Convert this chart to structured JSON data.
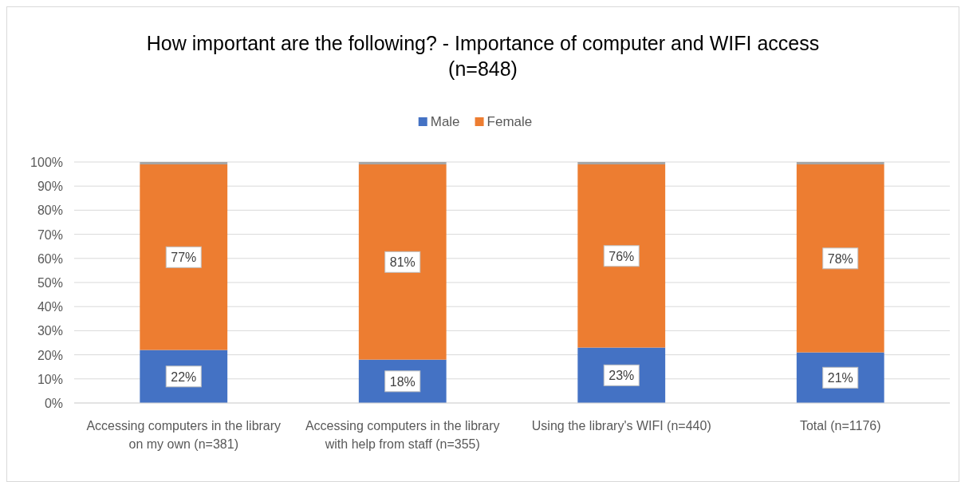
{
  "chart_data": {
    "type": "bar",
    "stacked": true,
    "title": "How important are the following? - Importance of computer and WIFI access (n=848)",
    "categories": [
      "Accessing computers in the library on my own (n=381)",
      "Accessing computers in the library with help from staff (n=355)",
      "Using the library's WIFI (n=440)",
      "Total (n=1176)"
    ],
    "series": [
      {
        "name": "Male",
        "color": "#4472c4",
        "values": [
          22,
          18,
          23,
          21
        ],
        "value_labels": [
          "22%",
          "18%",
          "23%",
          "21%"
        ]
      },
      {
        "name": "Female",
        "color": "#ed7d31",
        "values": [
          77,
          81,
          76,
          78
        ],
        "value_labels": [
          "77%",
          "81%",
          "76%",
          "78%"
        ]
      },
      {
        "color": "#a5a5a5",
        "values": [
          1,
          1,
          1,
          1
        ]
      }
    ],
    "ylim": [
      0,
      100
    ],
    "yticks": [
      {
        "value": 0,
        "label": "0%"
      },
      {
        "value": 10,
        "label": "10%"
      },
      {
        "value": 20,
        "label": "20%"
      },
      {
        "value": 30,
        "label": "30%"
      },
      {
        "value": 40,
        "label": "40%"
      },
      {
        "value": 50,
        "label": "50%"
      },
      {
        "value": 60,
        "label": "60%"
      },
      {
        "value": 70,
        "label": "70%"
      },
      {
        "value": 80,
        "label": "80%"
      },
      {
        "value": 90,
        "label": "90%"
      },
      {
        "value": 100,
        "label": "100%"
      }
    ],
    "grid": "y",
    "legend": "top"
  }
}
